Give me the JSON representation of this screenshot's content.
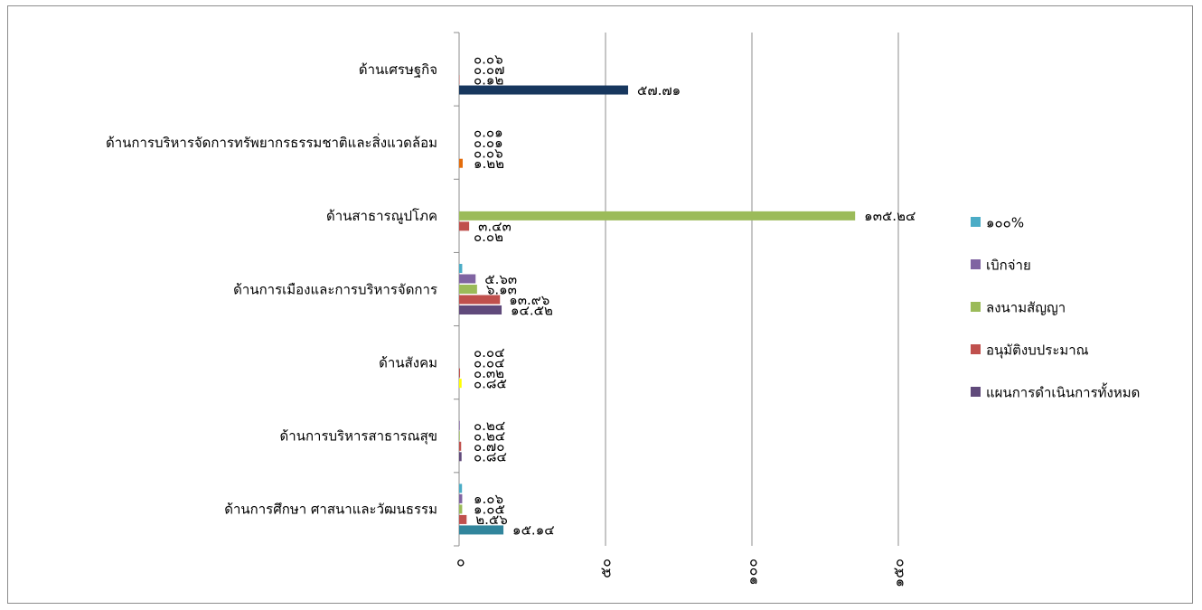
{
  "chart_data": {
    "type": "bar",
    "orientation": "horizontal",
    "categories": [
      "ด้านเศรษฐกิจ",
      "ด้านการบริหารจัดการทรัพยากรธรรมชาติและสิ่งแวดล้อม",
      "ด้านสาธารณูปโภค",
      "ด้านการเมืองและการบริหารจัดการ",
      "ด้านสังคม",
      "ด้านการบริหารสาธารณสุข",
      "ด้านการศึกษา ศาสนาและวัฒนธรรม"
    ],
    "series": [
      {
        "name": "๑๐๐%",
        "color": "#4bacc6",
        "values": [
          0,
          0,
          0,
          1.06,
          0,
          0,
          0.99
        ],
        "labels": [
          "",
          "",
          "",
          "",
          "",
          "",
          ""
        ]
      },
      {
        "name": "เบิกจ่าย",
        "color": "#8064a2",
        "values": [
          0.06,
          0.01,
          0,
          5.63,
          0.04,
          0.24,
          1.06
        ],
        "labels": [
          "๐.๐๖",
          "๐.๐๑",
          "",
          "๕.๖๓",
          "๐.๐๔",
          "๐.๒๔",
          "๑.๐๖"
        ]
      },
      {
        "name": "ลงนามสัญญา",
        "color": "#9bbb59",
        "values": [
          0.07,
          0.01,
          135.24,
          6.13,
          0.04,
          0.24,
          1.05
        ],
        "labels": [
          "๐.๐๗",
          "๐.๐๑",
          "๑๓๕.๒๔",
          "๖.๑๓",
          "๐.๐๔",
          "๐.๒๔",
          "๑.๐๕"
        ]
      },
      {
        "name": "อนุมัติงบประมาณ",
        "color": "#c0504d",
        "values": [
          0.12,
          0.06,
          3.43,
          13.96,
          0.32,
          0.7,
          2.56
        ],
        "labels": [
          "๐.๑๒",
          "๐.๐๖",
          "๓.๔๓",
          "๑๓.๙๖",
          "๐.๓๒",
          "๐.๗๐",
          "๒.๕๖"
        ]
      },
      {
        "name": "แผนการดำเนินการทั้งหมด",
        "color": "#604a7b",
        "values": [
          57.71,
          1.22,
          0.02,
          14.52,
          0.85,
          0.84,
          15.14
        ],
        "labels": [
          "๕๗.๗๑",
          "๑.๒๒",
          "๐.๐๒",
          "๑๔.๕๒",
          "๐.๘๕",
          "๐.๘๔",
          "๑๕.๑๔"
        ]
      }
    ],
    "bar_colors_by_category": {
      "ด้านเศรษฐกิจ": "#17375e",
      "ด้านการบริหารจัดการทรัพยากรธรรมชาติและสิ่งแวดล้อม": "#e46c0a",
      "ด้านสังคม": "#ffff00",
      "ด้านการศึกษา ศาสนาและวัฒนธรรม": "#31859c"
    },
    "xlim": [
      0,
      150
    ],
    "xticks": [
      0,
      50,
      100,
      150
    ],
    "xtick_labels": [
      "๐",
      "๕๐",
      "๑๐๐",
      "๑๕๐"
    ],
    "grid": "vertical",
    "legend": "right"
  }
}
